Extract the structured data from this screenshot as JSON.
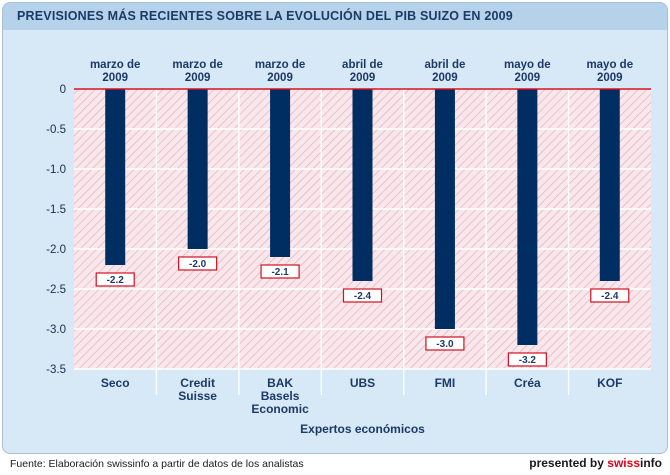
{
  "title": "PREVISIONES MÁS RECIENTES SOBRE LA EVOLUCIÓN DEL PIB SUIZO EN 2009",
  "footer": {
    "source": "Fuente: Elaboración swissinfo a partir de datos de los analistas",
    "presented_by": "presented by",
    "brand_a": "swiss",
    "brand_b": "info"
  },
  "chart_data": {
    "type": "bar",
    "categories": [
      [
        "Seco"
      ],
      [
        "Credit",
        "Suisse"
      ],
      [
        "BAK",
        "Basels",
        "Economic"
      ],
      [
        "UBS"
      ],
      [
        "FMI"
      ],
      [
        "Créa"
      ],
      [
        "KOF"
      ]
    ],
    "dates": [
      [
        "marzo de",
        "2009"
      ],
      [
        "marzo de",
        "2009"
      ],
      [
        "marzo de",
        "2009"
      ],
      [
        "abril de",
        "2009"
      ],
      [
        "abril de",
        "2009"
      ],
      [
        "mayo de",
        "2009"
      ],
      [
        "mayo de",
        "2009"
      ]
    ],
    "values": [
      -2.2,
      -2.0,
      -2.1,
      -2.4,
      -3.0,
      -3.2,
      -2.4
    ],
    "value_labels": [
      "-2.2",
      "-2.0",
      "-2.1",
      "-2.4",
      "-3.0",
      "-3.2",
      "-2.4"
    ],
    "xlabel": "Expertos económicos",
    "ylabel": "",
    "ylim": [
      -3.5,
      0
    ],
    "yticks": [
      0,
      -0.5,
      -1.0,
      -1.5,
      -2.0,
      -2.5,
      -3.0,
      -3.5
    ],
    "ytick_labels": [
      "0",
      "-0.5",
      "-1.0",
      "-1.5",
      "-2.0",
      "-2.5",
      "-3.0",
      "-3.5"
    ],
    "grid": true,
    "colors": {
      "bar": "#002d62",
      "zero_line": "#d0101f",
      "label_border": "#d0101f",
      "hatch": "#e8a9b5",
      "plot_bg": "#f8e8ec",
      "frame_bg": "#d7e8f6",
      "text": "#1b3a66"
    }
  }
}
